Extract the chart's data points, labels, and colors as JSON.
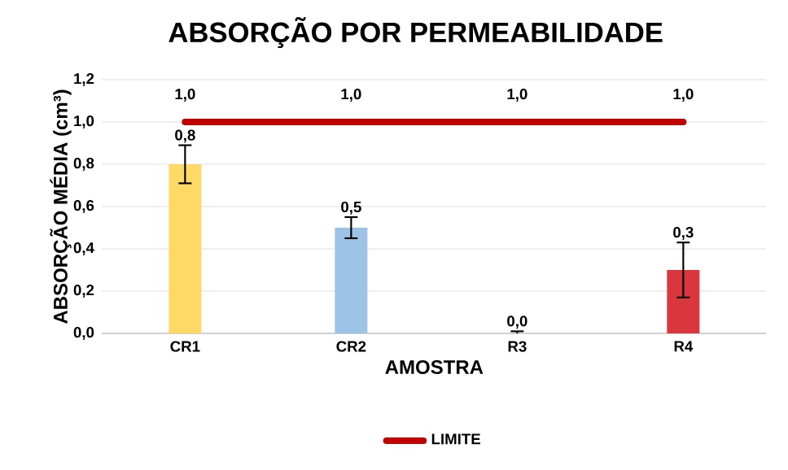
{
  "chart_data": {
    "type": "bar",
    "title": "ABSORÇÃO POR PERMEABILIDADE",
    "xlabel": "AMOSTRA",
    "ylabel": "ABSORÇÃO MÉDIA (cm³)",
    "categories": [
      "CR1",
      "CR2",
      "R3",
      "R4"
    ],
    "series": [
      {
        "colors": [
          "#ffd966",
          "#9dc3e6",
          "#a5a5a5",
          "#d9363e"
        ],
        "values": [
          0.8,
          0.5,
          0.0,
          0.3
        ],
        "errors": [
          0.09,
          0.05,
          0.01,
          0.13
        ],
        "value_labels": [
          "0,8",
          "0,5",
          "0,0",
          "0,3"
        ]
      },
      {
        "type": "line",
        "name": "LIMITE",
        "color": "#c00000",
        "values": [
          1.0,
          1.0,
          1.0,
          1.0
        ],
        "value_labels": [
          "1,0",
          "1,0",
          "1,0",
          "1,0"
        ]
      }
    ],
    "ylim": [
      0,
      1.2
    ],
    "yticks": [
      {
        "value": 0,
        "label": "0,0"
      },
      {
        "value": 0.2,
        "label": "0,2"
      },
      {
        "value": 0.4,
        "label": "0,4"
      },
      {
        "value": 0.6,
        "label": "0,6"
      },
      {
        "value": 0.8,
        "label": "0,8"
      },
      {
        "value": 1.0,
        "label": "1,0"
      },
      {
        "value": 1.2,
        "label": "1,2"
      }
    ],
    "grid": "y",
    "legend": "bottom"
  }
}
